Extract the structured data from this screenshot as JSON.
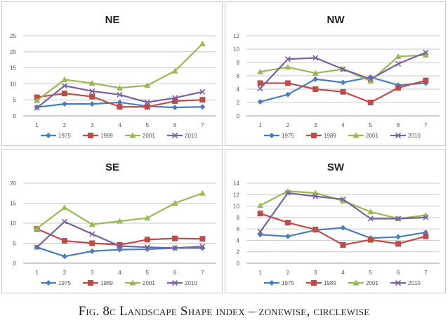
{
  "caption": "Fig. 8c Landscape Shape index – zonewise, circlewise",
  "colors": {
    "1975": "#4a7ebb",
    "1989": "#be4b48",
    "2001": "#98b954",
    "2010": "#7d60a0"
  },
  "chart_data": [
    {
      "type": "line",
      "title": "NE",
      "x": [
        1,
        2,
        3,
        4,
        5,
        6,
        7
      ],
      "categories": [
        "1",
        "2",
        "3",
        "4",
        "5",
        "6",
        "7"
      ],
      "ylim": [
        0,
        25
      ],
      "yticks": [
        0,
        5,
        10,
        15,
        20,
        25
      ],
      "grid": true,
      "legend": "bottom",
      "series": [
        {
          "name": "1975",
          "marker": "diamond",
          "values": [
            2.7,
            3.7,
            3.7,
            4.2,
            3.0,
            2.6,
            2.8
          ]
        },
        {
          "name": "1989",
          "marker": "square",
          "values": [
            5.8,
            7.0,
            6.0,
            2.8,
            2.8,
            4.6,
            5.0
          ]
        },
        {
          "name": "2001",
          "marker": "triangle",
          "values": [
            4.8,
            11.3,
            10.2,
            8.7,
            9.5,
            14.0,
            22.5
          ]
        },
        {
          "name": "2010",
          "marker": "x",
          "values": [
            2.5,
            9.4,
            7.7,
            6.6,
            4.2,
            5.6,
            7.5
          ]
        }
      ]
    },
    {
      "type": "line",
      "title": "NW",
      "x": [
        1,
        2,
        3,
        4,
        5,
        6,
        7
      ],
      "categories": [
        "1",
        "2",
        "3",
        "4",
        "5",
        "6",
        "7"
      ],
      "ylim": [
        0,
        12
      ],
      "yticks": [
        0,
        2,
        4,
        6,
        8,
        10,
        12
      ],
      "grid": true,
      "legend": "bottom",
      "series": [
        {
          "name": "1975",
          "marker": "diamond",
          "values": [
            2.1,
            3.2,
            5.5,
            5.0,
            5.8,
            4.6,
            4.9
          ]
        },
        {
          "name": "1989",
          "marker": "square",
          "values": [
            4.9,
            4.9,
            4.0,
            3.6,
            2.0,
            4.2,
            5.3
          ]
        },
        {
          "name": "2001",
          "marker": "triangle",
          "values": [
            6.6,
            7.3,
            6.4,
            7.0,
            5.2,
            8.9,
            9.1
          ]
        },
        {
          "name": "2010",
          "marker": "x",
          "values": [
            4.1,
            8.5,
            8.7,
            7.0,
            5.5,
            7.8,
            9.5
          ]
        }
      ]
    },
    {
      "type": "line",
      "title": "SE",
      "x": [
        1,
        2,
        3,
        4,
        5,
        6,
        7
      ],
      "categories": [
        "1",
        "2",
        "3",
        "4",
        "5",
        "6",
        "7"
      ],
      "ylim": [
        0,
        20
      ],
      "yticks": [
        0,
        5,
        10,
        15,
        20
      ],
      "grid": true,
      "legend": "bottom",
      "series": [
        {
          "name": "1975",
          "marker": "diamond",
          "values": [
            4.0,
            1.7,
            3.0,
            3.4,
            3.5,
            3.8,
            3.8
          ]
        },
        {
          "name": "1989",
          "marker": "square",
          "values": [
            8.6,
            5.6,
            5.0,
            4.6,
            5.9,
            6.2,
            6.1
          ]
        },
        {
          "name": "2001",
          "marker": "triangle",
          "values": [
            8.7,
            13.9,
            9.7,
            10.5,
            11.3,
            15.0,
            17.5
          ]
        },
        {
          "name": "2010",
          "marker": "x",
          "values": [
            4.0,
            10.4,
            7.3,
            4.3,
            4.0,
            3.8,
            4.2
          ]
        }
      ]
    },
    {
      "type": "line",
      "title": "SW",
      "x": [
        1,
        2,
        3,
        4,
        5,
        6,
        7
      ],
      "categories": [
        "1",
        "2",
        "3",
        "4",
        "5",
        "6",
        "7"
      ],
      "ylim": [
        0,
        14
      ],
      "yticks": [
        0,
        2,
        4,
        6,
        8,
        10,
        12,
        14
      ],
      "grid": true,
      "legend": "bottom",
      "series": [
        {
          "name": "1975",
          "marker": "diamond",
          "values": [
            5.0,
            4.7,
            5.8,
            6.2,
            4.4,
            4.6,
            5.4
          ]
        },
        {
          "name": "1989",
          "marker": "square",
          "values": [
            8.7,
            7.1,
            5.9,
            3.2,
            4.1,
            3.4,
            4.7
          ]
        },
        {
          "name": "2001",
          "marker": "triangle",
          "values": [
            10.1,
            12.6,
            12.3,
            10.9,
            9.0,
            7.8,
            8.4
          ]
        },
        {
          "name": "2010",
          "marker": "x",
          "values": [
            5.5,
            12.3,
            11.7,
            11.2,
            7.8,
            7.8,
            8.0
          ]
        }
      ]
    }
  ]
}
